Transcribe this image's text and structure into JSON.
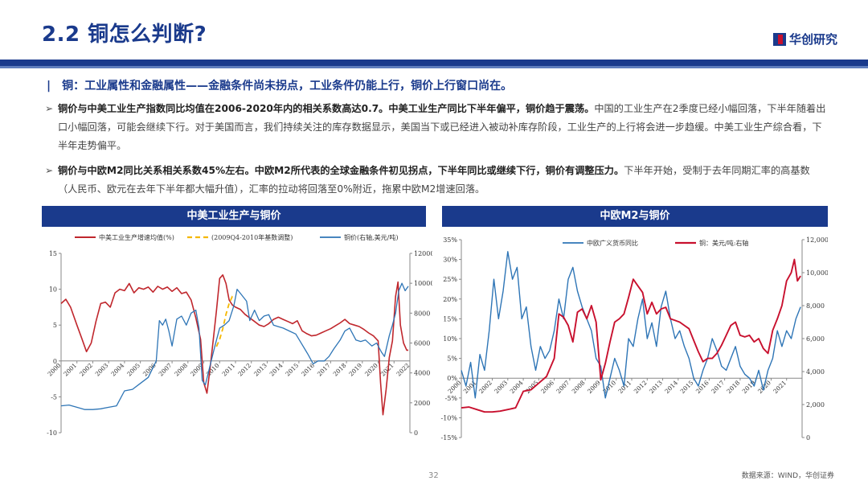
{
  "slide": {
    "title": "2.2 铜怎么判断?",
    "logo_text": "华创研究",
    "section_title": "铜：工业属性和金融属性——金融条件尚未拐点，工业条件仍能上行，铜价上行窗口尚在。",
    "bullets": [
      {
        "bold": "铜价与中美工业生产指数同比均值在2006-2020年内的相关系数高达0.7。中美工业生产同比下半年偏平，铜价趋于震荡。",
        "text": "中国的工业生产在2季度已经小幅回落，下半年随着出口小幅回落，可能会继续下行。对于美国而言，我们持续关注的库存数据显示，美国当下或已经进入被动补库存阶段，工业生产的上行将会进一步趋缓。中美工业生产综合看，下半年走势偏平。"
      },
      {
        "bold": "铜价与中欧M2同比关系相关系数45%左右。中欧M2所代表的全球金融条件初见拐点，下半年同比或继续下行，铜价有调整压力。",
        "text": "下半年开始，受制于去年同期汇率的高基数（人民币、欧元在去年下半年都大幅升值），汇率的拉动将回落至0%附近，拖累中欧M2增速回落。"
      }
    ],
    "page_number": "32",
    "source_note": "数据来源：WIND，华创证券"
  },
  "chart_data": [
    {
      "type": "line",
      "title": "中美工业生产与铜价",
      "x_tick_labels": [
        "2000",
        "2001",
        "2002",
        "2003",
        "2004",
        "2005",
        "2006",
        "2007",
        "2008",
        "2009",
        "2010",
        "2011",
        "2012",
        "2013",
        "2014",
        "2015",
        "2016",
        "2017",
        "2018",
        "2019",
        "2020",
        "2021",
        "2022"
      ],
      "xlim": [
        2000,
        2022
      ],
      "ylim_left": [
        -10,
        15
      ],
      "y_ticks_left": [
        "15",
        "10",
        "5",
        "0",
        "-5",
        "-10"
      ],
      "ylim_right": [
        0,
        12000
      ],
      "y_ticks_right": [
        "12000",
        "10000",
        "8000",
        "6000",
        "4000",
        "2000",
        "0"
      ],
      "legend": [
        "中美工业生产增速均值(%)",
        "(2009Q4-2010年基数调整)",
        "铜价(右轴,美元/吨)"
      ],
      "colors": {
        "ip": "#c0272d",
        "adj": "#f5b800",
        "copper": "#2e75b6"
      },
      "series": [
        {
          "name": "中美工业生产增速均值(%)",
          "axis": "left",
          "x": [
            2000,
            2000.3,
            2000.6,
            2001,
            2001.3,
            2001.6,
            2001.9,
            2002.2,
            2002.5,
            2002.8,
            2003.1,
            2003.4,
            2003.7,
            2004,
            2004.3,
            2004.6,
            2004.9,
            2005.2,
            2005.5,
            2005.8,
            2006.1,
            2006.4,
            2006.7,
            2007,
            2007.3,
            2007.6,
            2007.9,
            2008.2,
            2008.5,
            2008.8,
            2009,
            2009.2,
            2009.4,
            2009.6,
            2009.8,
            2010,
            2010.2,
            2010.4,
            2010.6,
            2010.8,
            2011,
            2011.3,
            2011.6,
            2011.9,
            2012.2,
            2012.5,
            2012.8,
            2013.1,
            2013.4,
            2013.7,
            2014,
            2014.3,
            2014.6,
            2014.9,
            2015.2,
            2015.5,
            2015.8,
            2016.1,
            2016.4,
            2016.7,
            2017,
            2017.3,
            2017.6,
            2017.9,
            2018.2,
            2018.5,
            2018.8,
            2019.1,
            2019.4,
            2019.7,
            2020,
            2020.15,
            2020.3,
            2020.5,
            2020.7,
            2020.9,
            2021.1,
            2021.25,
            2021.4,
            2021.6,
            2021.8,
            2021.9
          ],
          "y": [
            8,
            8.6,
            7.5,
            5,
            3.2,
            1.3,
            2.5,
            5.5,
            8,
            8.2,
            7.5,
            9.5,
            10,
            9.8,
            10.8,
            9.5,
            10.2,
            10,
            10.3,
            9.6,
            10.4,
            10,
            10.3,
            9.7,
            10.2,
            9.4,
            9.6,
            8.5,
            6,
            3,
            -3,
            -4.5,
            -1,
            3,
            7,
            11.5,
            12,
            10.8,
            8.5,
            7.8,
            7.5,
            7.2,
            6.5,
            6,
            5.5,
            5,
            4.8,
            5.2,
            5.8,
            6.1,
            5.8,
            5.5,
            5.2,
            5.6,
            4.2,
            3.8,
            3.5,
            3.6,
            3.9,
            4.2,
            4.5,
            4.9,
            5.3,
            5.8,
            5.2,
            5,
            4.8,
            4.4,
            3.9,
            3.5,
            2.8,
            -3,
            -7.5,
            -4,
            0.5,
            2.8,
            9,
            11,
            5,
            2.5,
            1.5,
            1.5
          ]
        },
        {
          "name": "(2009Q4-2010年基数调整)",
          "axis": "left",
          "x": [
            2009.8,
            2010,
            2010.2,
            2010.4,
            2010.6,
            2010.8,
            2011
          ],
          "y": [
            2,
            3,
            4.5,
            6.5,
            8,
            9,
            9.2
          ]
        },
        {
          "name": "铜价(右轴,美元/吨)",
          "axis": "right",
          "x": [
            2000,
            2000.5,
            2001,
            2001.5,
            2002,
            2002.5,
            2003,
            2003.5,
            2004,
            2004.5,
            2005,
            2005.5,
            2006,
            2006.2,
            2006.4,
            2006.6,
            2006.8,
            2007,
            2007.3,
            2007.6,
            2007.9,
            2008.2,
            2008.5,
            2008.7,
            2008.9,
            2009.1,
            2009.4,
            2009.7,
            2010,
            2010.3,
            2010.6,
            2010.9,
            2011.1,
            2011.4,
            2011.7,
            2011.9,
            2012.2,
            2012.5,
            2012.8,
            2013.1,
            2013.4,
            2013.7,
            2014,
            2014.4,
            2014.8,
            2015.2,
            2015.6,
            2015.9,
            2016.2,
            2016.6,
            2016.9,
            2017.2,
            2017.6,
            2017.9,
            2018.2,
            2018.6,
            2018.9,
            2019.2,
            2019.6,
            2019.9,
            2020.2,
            2020.4,
            2020.7,
            2020.9,
            2021.1,
            2021.3,
            2021.5,
            2021.7,
            2021.9
          ],
          "y": [
            1800,
            1850,
            1700,
            1550,
            1550,
            1600,
            1700,
            1800,
            2800,
            2900,
            3300,
            3700,
            4800,
            7500,
            7200,
            7600,
            6800,
            5800,
            7600,
            7800,
            7200,
            8000,
            8200,
            7000,
            3500,
            3200,
            4500,
            5800,
            7000,
            7200,
            7500,
            8500,
            9600,
            9200,
            8800,
            7500,
            8200,
            7500,
            7800,
            7900,
            7200,
            7100,
            7000,
            6800,
            6600,
            5900,
            5200,
            4600,
            4800,
            4800,
            5100,
            5600,
            6200,
            6800,
            7000,
            6200,
            6100,
            6200,
            5800,
            6000,
            5400,
            5100,
            6500,
            7200,
            8000,
            9500,
            10000,
            9500,
            9800
          ]
        }
      ]
    },
    {
      "type": "line",
      "title": "中欧M2与铜价",
      "x_tick_labels": [
        "2000",
        "2001",
        "2002",
        "2003",
        "2004",
        "2005",
        "2006",
        "2007",
        "2008",
        "2009",
        "2010",
        "2011",
        "2012",
        "2013",
        "2014",
        "2015",
        "2016",
        "2017",
        "2018",
        "2019",
        "2020",
        "2021"
      ],
      "xlim": [
        2000,
        2022
      ],
      "ylim_left": [
        -15,
        35
      ],
      "y_ticks_left": [
        "35%",
        "30%",
        "25%",
        "20%",
        "15%",
        "10%",
        "5%",
        "0%",
        "-5%",
        "-10%",
        "-15%"
      ],
      "ylim_right": [
        0,
        12000
      ],
      "y_ticks_right": [
        "12,000",
        "10,000",
        "8,000",
        "6,000",
        "4,000",
        "2,000",
        "0"
      ],
      "legend": [
        "中欧广义货币同比",
        "铜：美元/吨:右轴"
      ],
      "colors": {
        "m2": "#2e75b6",
        "copper": "#c8102e"
      },
      "series": [
        {
          "name": "中欧广义货币同比",
          "axis": "left",
          "x": [
            2000,
            2000.3,
            2000.6,
            2000.9,
            2001.2,
            2001.5,
            2001.8,
            2002.1,
            2002.4,
            2002.7,
            2003,
            2003.3,
            2003.6,
            2003.9,
            2004.2,
            2004.5,
            2004.8,
            2005.1,
            2005.4,
            2005.7,
            2006,
            2006.3,
            2006.6,
            2006.9,
            2007.2,
            2007.5,
            2007.8,
            2008.1,
            2008.4,
            2008.7,
            2009,
            2009.3,
            2009.6,
            2009.9,
            2010.2,
            2010.5,
            2010.8,
            2011.1,
            2011.4,
            2011.7,
            2012,
            2012.3,
            2012.6,
            2012.9,
            2013.2,
            2013.5,
            2013.8,
            2014.1,
            2014.4,
            2014.7,
            2015,
            2015.3,
            2015.6,
            2015.9,
            2016.2,
            2016.5,
            2016.8,
            2017.1,
            2017.4,
            2017.7,
            2018,
            2018.3,
            2018.6,
            2018.9,
            2019.2,
            2019.5,
            2019.8,
            2020.1,
            2020.4,
            2020.7,
            2021,
            2021.3,
            2021.6,
            2021.9
          ],
          "y": [
            2,
            -2,
            4,
            -5,
            6,
            2,
            12,
            25,
            15,
            22,
            32,
            25,
            28,
            15,
            18,
            8,
            2,
            8,
            5,
            7,
            12,
            20,
            15,
            25,
            28,
            22,
            18,
            15,
            12,
            5,
            3,
            -5,
            0,
            5,
            2,
            -2,
            10,
            8,
            15,
            20,
            10,
            14,
            8,
            18,
            22,
            15,
            10,
            12,
            8,
            5,
            0,
            -2,
            2,
            5,
            10,
            7,
            3,
            2,
            5,
            8,
            3,
            1,
            0,
            -2,
            2,
            -3,
            2,
            5,
            12,
            8,
            12,
            10,
            15,
            18
          ]
        },
        {
          "name": "铜：美元/吨:右轴",
          "axis": "right",
          "x": [
            2000,
            2000.5,
            2001,
            2001.5,
            2002,
            2002.5,
            2003,
            2003.5,
            2004,
            2004.5,
            2005,
            2005.5,
            2006,
            2006.3,
            2006.6,
            2006.9,
            2007.2,
            2007.5,
            2007.8,
            2008.1,
            2008.4,
            2008.7,
            2009,
            2009.3,
            2009.6,
            2009.9,
            2010.2,
            2010.5,
            2010.8,
            2011.1,
            2011.4,
            2011.7,
            2012,
            2012.3,
            2012.6,
            2012.9,
            2013.2,
            2013.5,
            2013.8,
            2014.1,
            2014.4,
            2014.7,
            2015,
            2015.3,
            2015.6,
            2015.9,
            2016.2,
            2016.5,
            2016.8,
            2017.1,
            2017.4,
            2017.7,
            2018,
            2018.3,
            2018.6,
            2018.9,
            2019.2,
            2019.5,
            2019.8,
            2020.1,
            2020.4,
            2020.7,
            2021,
            2021.3,
            2021.5,
            2021.7,
            2021.9
          ],
          "y": [
            1800,
            1850,
            1700,
            1550,
            1550,
            1600,
            1700,
            1800,
            2800,
            2900,
            3300,
            3700,
            4800,
            7500,
            7300,
            6800,
            5800,
            7600,
            7800,
            7200,
            8000,
            7000,
            3500,
            4500,
            5800,
            7000,
            7200,
            7500,
            8500,
            9600,
            9200,
            8800,
            7500,
            8200,
            7500,
            7800,
            7900,
            7200,
            7100,
            7000,
            6800,
            6600,
            5900,
            5200,
            4600,
            4800,
            4800,
            5100,
            5600,
            6200,
            6800,
            7000,
            6200,
            6100,
            6200,
            5800,
            6000,
            5400,
            5100,
            6500,
            7200,
            8000,
            9500,
            10000,
            10800,
            9500,
            9800
          ]
        }
      ]
    }
  ]
}
